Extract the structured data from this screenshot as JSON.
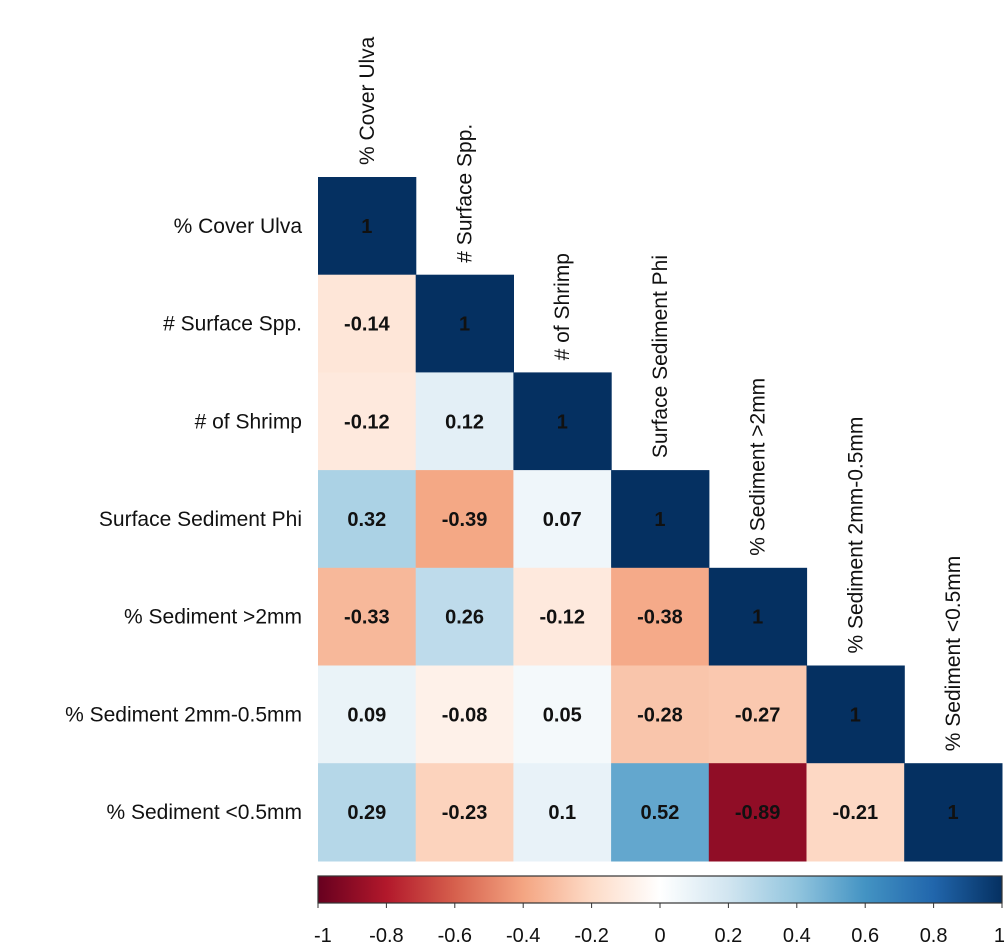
{
  "chart_data": {
    "type": "heatmap",
    "layout": "lower-triangle",
    "title": "",
    "variables": [
      "% Cover Ulva",
      "# Surface Spp.",
      "# of Shrimp",
      "Surface Sediment Phi",
      "% Sediment >2mm",
      "% Sediment 2mm-0.5mm",
      "% Sediment <0.5mm"
    ],
    "matrix": [
      [
        1
      ],
      [
        -0.14,
        1
      ],
      [
        -0.12,
        0.12,
        1
      ],
      [
        0.32,
        -0.39,
        0.07,
        1
      ],
      [
        -0.33,
        0.26,
        -0.12,
        -0.38,
        1
      ],
      [
        0.09,
        -0.08,
        0.05,
        -0.28,
        -0.27,
        1
      ],
      [
        0.29,
        -0.23,
        0.1,
        0.52,
        -0.89,
        -0.21,
        1
      ]
    ],
    "value_labels": [
      [
        "1"
      ],
      [
        "-0.14",
        "1"
      ],
      [
        "-0.12",
        "0.12",
        "1"
      ],
      [
        "0.32",
        "-0.39",
        "0.07",
        "1"
      ],
      [
        "-0.33",
        "0.26",
        "-0.12",
        "-0.38",
        "1"
      ],
      [
        "0.09",
        "-0.08",
        "0.05",
        "-0.28",
        "-0.27",
        "1"
      ],
      [
        "0.29",
        "-0.23",
        "0.1",
        "0.52",
        "-0.89",
        "-0.21",
        "1"
      ]
    ],
    "colorbar": {
      "range": [
        -1,
        1
      ],
      "ticks": [
        "-1",
        "-0.8",
        "-0.6",
        "-0.4",
        "-0.2",
        "0",
        "0.2",
        "0.4",
        "0.6",
        "0.8",
        "1"
      ],
      "placement": "bottom"
    },
    "colorscale": [
      "#67001f",
      "#b2182b",
      "#d6604d",
      "#f4a582",
      "#fddbc7",
      "#ffffff",
      "#d1e5f0",
      "#92c5de",
      "#4393c3",
      "#2166ac",
      "#053061"
    ],
    "grid": false
  }
}
